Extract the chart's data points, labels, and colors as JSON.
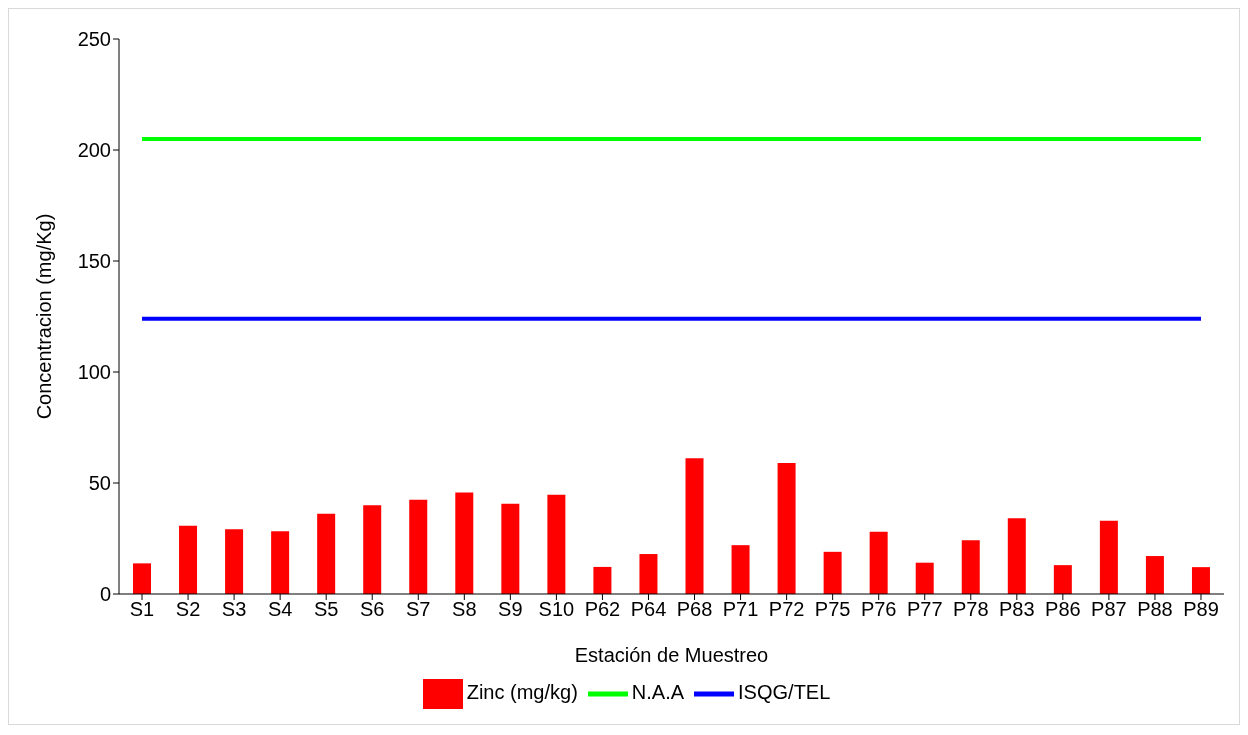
{
  "chart_data": {
    "type": "bar",
    "xlabel": "Estación de Muestreo",
    "ylabel": "Concentracion (mg/Kg)",
    "categories": [
      "S1",
      "S2",
      "S3",
      "S4",
      "S5",
      "S6",
      "S7",
      "S8",
      "S9",
      "S10",
      "P62",
      "P64",
      "P68",
      "P71",
      "P72",
      "P75",
      "P76",
      "P77",
      "P78",
      "P83",
      "P86",
      "P87",
      "P88",
      "P89"
    ],
    "series": [
      {
        "name": "Zinc (mg/kg)",
        "color": "#ff0000",
        "values": [
          13.8,
          30.7,
          29.2,
          28.3,
          36.2,
          40,
          42.5,
          45.7,
          40.7,
          44.7,
          12.2,
          18,
          61.2,
          22,
          59,
          19,
          28,
          14.1,
          24.2,
          34.1,
          13,
          33,
          17.1,
          12.1
        ]
      },
      {
        "name": "N.A.A",
        "type": "line",
        "color": "#00ff00",
        "values": [
          205,
          205,
          205,
          205,
          205,
          205,
          205,
          205,
          205,
          205,
          205,
          205,
          205,
          205,
          205,
          205,
          205,
          205,
          205,
          205,
          205,
          205,
          205,
          205
        ]
      },
      {
        "name": "ISQG/TEL",
        "type": "line",
        "color": "#0000ff",
        "values": [
          124,
          124,
          124,
          124,
          124,
          124,
          124,
          124,
          124,
          124,
          124,
          124,
          124,
          124,
          124,
          124,
          124,
          124,
          124,
          124,
          124,
          124,
          124,
          124
        ]
      }
    ],
    "ylim": [
      0,
      250
    ],
    "yticks": [
      0,
      50,
      100,
      150,
      200,
      250
    ],
    "grid": false,
    "legend": "bottom",
    "marker": "none"
  }
}
